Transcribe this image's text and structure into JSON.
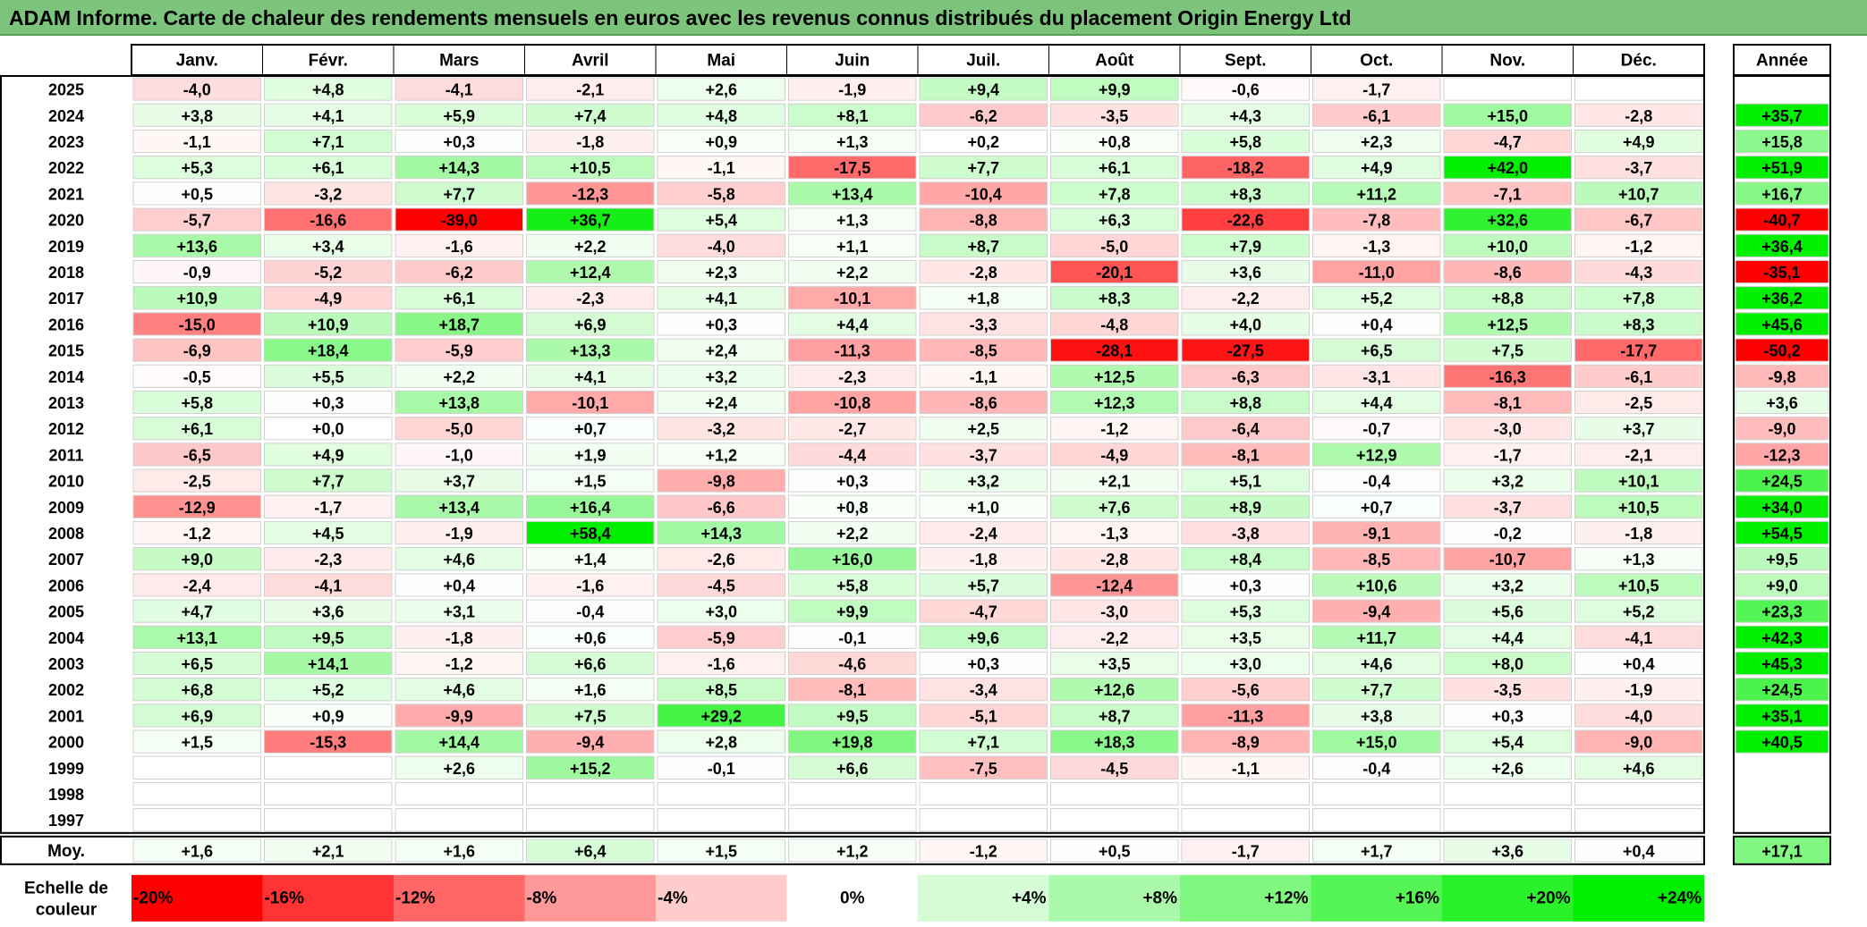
{
  "title": "ADAM Informe. Carte de chaleur des rendements mensuels en euros avec les revenus connus distribués du placement Origin Energy Ltd",
  "chart_data": {
    "type": "heatmap",
    "title": "ADAM Informe. Carte de chaleur des rendements mensuels en euros avec les revenus connus distribués du placement Origin Energy Ltd",
    "months": [
      "Janv.",
      "Févr.",
      "Mars",
      "Avril",
      "Mai",
      "Juin",
      "Juil.",
      "Août",
      "Sept.",
      "Oct.",
      "Nov.",
      "Déc."
    ],
    "year_header": "Année",
    "rows": [
      {
        "year": "2025",
        "values": [
          "-4,0",
          "+4,8",
          "-4,1",
          "-2,1",
          "+2,6",
          "-1,9",
          "+9,4",
          "+9,9",
          "-0,6",
          "-1,7",
          "",
          ""
        ],
        "annual": ""
      },
      {
        "year": "2024",
        "values": [
          "+3,8",
          "+4,1",
          "+5,9",
          "+7,4",
          "+4,8",
          "+8,1",
          "-6,2",
          "-3,5",
          "+4,3",
          "-6,1",
          "+15,0",
          "-2,8"
        ],
        "annual": "+35,7"
      },
      {
        "year": "2023",
        "values": [
          "-1,1",
          "+7,1",
          "+0,3",
          "-1,8",
          "+0,9",
          "+1,3",
          "+0,2",
          "+0,8",
          "+5,8",
          "+2,3",
          "-4,7",
          "+4,9"
        ],
        "annual": "+15,8"
      },
      {
        "year": "2022",
        "values": [
          "+5,3",
          "+6,1",
          "+14,3",
          "+10,5",
          "-1,1",
          "-17,5",
          "+7,7",
          "+6,1",
          "-18,2",
          "+4,9",
          "+42,0",
          "-3,7"
        ],
        "annual": "+51,9"
      },
      {
        "year": "2021",
        "values": [
          "+0,5",
          "-3,2",
          "+7,7",
          "-12,3",
          "-5,8",
          "+13,4",
          "-10,4",
          "+7,8",
          "+8,3",
          "+11,2",
          "-7,1",
          "+10,7"
        ],
        "annual": "+16,7"
      },
      {
        "year": "2020",
        "values": [
          "-5,7",
          "-16,6",
          "-39,0",
          "+36,7",
          "+5,4",
          "+1,3",
          "-8,8",
          "+6,3",
          "-22,6",
          "-7,8",
          "+32,6",
          "-6,7"
        ],
        "annual": "-40,7"
      },
      {
        "year": "2019",
        "values": [
          "+13,6",
          "+3,4",
          "-1,6",
          "+2,2",
          "-4,0",
          "+1,1",
          "+8,7",
          "-5,0",
          "+7,9",
          "-1,3",
          "+10,0",
          "-1,2"
        ],
        "annual": "+36,4"
      },
      {
        "year": "2018",
        "values": [
          "-0,9",
          "-5,2",
          "-6,2",
          "+12,4",
          "+2,3",
          "+2,2",
          "-2,8",
          "-20,1",
          "+3,6",
          "-11,0",
          "-8,6",
          "-4,3"
        ],
        "annual": "-35,1"
      },
      {
        "year": "2017",
        "values": [
          "+10,9",
          "-4,9",
          "+6,1",
          "-2,3",
          "+4,1",
          "-10,1",
          "+1,8",
          "+8,3",
          "-2,2",
          "+5,2",
          "+8,8",
          "+7,8"
        ],
        "annual": "+36,2"
      },
      {
        "year": "2016",
        "values": [
          "-15,0",
          "+10,9",
          "+18,7",
          "+6,9",
          "+0,3",
          "+4,4",
          "-3,3",
          "-4,8",
          "+4,0",
          "+0,4",
          "+12,5",
          "+8,3"
        ],
        "annual": "+45,6"
      },
      {
        "year": "2015",
        "values": [
          "-6,9",
          "+18,4",
          "-5,9",
          "+13,3",
          "+2,4",
          "-11,3",
          "-8,5",
          "-28,1",
          "-27,5",
          "+6,5",
          "+7,5",
          "-17,7"
        ],
        "annual": "-50,2"
      },
      {
        "year": "2014",
        "values": [
          "-0,5",
          "+5,5",
          "+2,2",
          "+4,1",
          "+3,2",
          "-2,3",
          "-1,1",
          "+12,5",
          "-6,3",
          "-3,1",
          "-16,3",
          "-6,1"
        ],
        "annual": "-9,8"
      },
      {
        "year": "2013",
        "values": [
          "+5,8",
          "+0,3",
          "+13,8",
          "-10,1",
          "+2,4",
          "-10,8",
          "-8,6",
          "+12,3",
          "+8,8",
          "+4,4",
          "-8,1",
          "-2,5"
        ],
        "annual": "+3,6"
      },
      {
        "year": "2012",
        "values": [
          "+6,1",
          "+0,0",
          "-5,0",
          "+0,7",
          "-3,2",
          "-2,7",
          "+2,5",
          "-1,2",
          "-6,4",
          "-0,7",
          "-3,0",
          "+3,7"
        ],
        "annual": "-9,0"
      },
      {
        "year": "2011",
        "values": [
          "-6,5",
          "+4,9",
          "-1,0",
          "+1,9",
          "+1,2",
          "-4,4",
          "-3,7",
          "-4,9",
          "-8,1",
          "+12,9",
          "-1,7",
          "-2,1"
        ],
        "annual": "-12,3"
      },
      {
        "year": "2010",
        "values": [
          "-2,5",
          "+7,7",
          "+3,7",
          "+1,5",
          "-9,8",
          "+0,3",
          "+3,2",
          "+2,1",
          "+5,1",
          "-0,4",
          "+3,2",
          "+10,1"
        ],
        "annual": "+24,5"
      },
      {
        "year": "2009",
        "values": [
          "-12,9",
          "-1,7",
          "+13,4",
          "+16,4",
          "-6,6",
          "+0,8",
          "+1,0",
          "+7,6",
          "+8,9",
          "+0,7",
          "-3,7",
          "+10,5"
        ],
        "annual": "+34,0"
      },
      {
        "year": "2008",
        "values": [
          "-1,2",
          "+4,5",
          "-1,9",
          "+58,4",
          "+14,3",
          "+2,2",
          "-2,4",
          "-1,3",
          "-3,8",
          "-9,1",
          "-0,2",
          "-1,8"
        ],
        "annual": "+54,5"
      },
      {
        "year": "2007",
        "values": [
          "+9,0",
          "-2,3",
          "+4,6",
          "+1,4",
          "-2,6",
          "+16,0",
          "-1,8",
          "-2,8",
          "+8,4",
          "-8,5",
          "-10,7",
          "+1,3"
        ],
        "annual": "+9,5"
      },
      {
        "year": "2006",
        "values": [
          "-2,4",
          "-4,1",
          "+0,4",
          "-1,6",
          "-4,5",
          "+5,8",
          "+5,7",
          "-12,4",
          "+0,3",
          "+10,6",
          "+3,2",
          "+10,5"
        ],
        "annual": "+9,0"
      },
      {
        "year": "2005",
        "values": [
          "+4,7",
          "+3,6",
          "+3,1",
          "-0,4",
          "+3,0",
          "+9,9",
          "-4,7",
          "-3,0",
          "+5,3",
          "-9,4",
          "+5,6",
          "+5,2"
        ],
        "annual": "+23,3"
      },
      {
        "year": "2004",
        "values": [
          "+13,1",
          "+9,5",
          "-1,8",
          "+0,6",
          "-5,9",
          "-0,1",
          "+9,6",
          "-2,2",
          "+3,5",
          "+11,7",
          "+4,4",
          "-4,1"
        ],
        "annual": "+42,3"
      },
      {
        "year": "2003",
        "values": [
          "+6,5",
          "+14,1",
          "-1,2",
          "+6,6",
          "-1,6",
          "-4,6",
          "+0,3",
          "+3,5",
          "+3,0",
          "+4,6",
          "+8,0",
          "+0,4"
        ],
        "annual": "+45,3"
      },
      {
        "year": "2002",
        "values": [
          "+6,8",
          "+5,2",
          "+4,6",
          "+1,6",
          "+8,5",
          "-8,1",
          "-3,4",
          "+12,6",
          "-5,6",
          "+7,7",
          "-3,5",
          "-1,9"
        ],
        "annual": "+24,5"
      },
      {
        "year": "2001",
        "values": [
          "+6,9",
          "+0,9",
          "-9,9",
          "+7,5",
          "+29,2",
          "+9,5",
          "-5,1",
          "+8,7",
          "-11,3",
          "+3,8",
          "+0,3",
          "-4,0"
        ],
        "annual": "+35,1"
      },
      {
        "year": "2000",
        "values": [
          "+1,5",
          "-15,3",
          "+14,4",
          "-9,4",
          "+2,8",
          "+19,8",
          "+7,1",
          "+18,3",
          "-8,9",
          "+15,0",
          "+5,4",
          "-9,0"
        ],
        "annual": "+40,5"
      },
      {
        "year": "1999",
        "values": [
          "",
          "",
          "+2,6",
          "+15,2",
          "-0,1",
          "+6,6",
          "-7,5",
          "-4,5",
          "-1,1",
          "-0,4",
          "+2,6",
          "+4,6"
        ],
        "annual": ""
      },
      {
        "year": "1998",
        "values": [
          "",
          "",
          "",
          "",
          "",
          "",
          "",
          "",
          "",
          "",
          "",
          ""
        ],
        "annual": ""
      },
      {
        "year": "1997",
        "values": [
          "",
          "",
          "",
          "",
          "",
          "",
          "",
          "",
          "",
          "",
          "",
          ""
        ],
        "annual": ""
      }
    ],
    "average": {
      "label": "Moy.",
      "values": [
        "+1,6",
        "+2,1",
        "+1,6",
        "+6,4",
        "+1,5",
        "+1,2",
        "-1,2",
        "+0,5",
        "-1,7",
        "+1,7",
        "+3,6",
        "+0,4"
      ],
      "annual": "+17,1"
    },
    "legend": {
      "label_line1": "Echelle de",
      "label_line2": "couleur",
      "items": [
        {
          "label": "-20%",
          "value": -20
        },
        {
          "label": "-16%",
          "value": -16
        },
        {
          "label": "-12%",
          "value": -12
        },
        {
          "label": "-8%",
          "value": -8
        },
        {
          "label": "-4%",
          "value": -4
        },
        {
          "label": "0%",
          "value": 0
        },
        {
          "label": "+4%",
          "value": 4
        },
        {
          "label": "+8%",
          "value": 8
        },
        {
          "label": "+12%",
          "value": 12
        },
        {
          "label": "+16%",
          "value": 16
        },
        {
          "label": "+20%",
          "value": 20
        },
        {
          "label": "+24%",
          "value": 24
        }
      ]
    },
    "colors": {
      "negative": "#ff0000",
      "neutral": "#ffffff",
      "positive": "#00ee00"
    },
    "scale_range": [
      -20,
      24
    ]
  }
}
